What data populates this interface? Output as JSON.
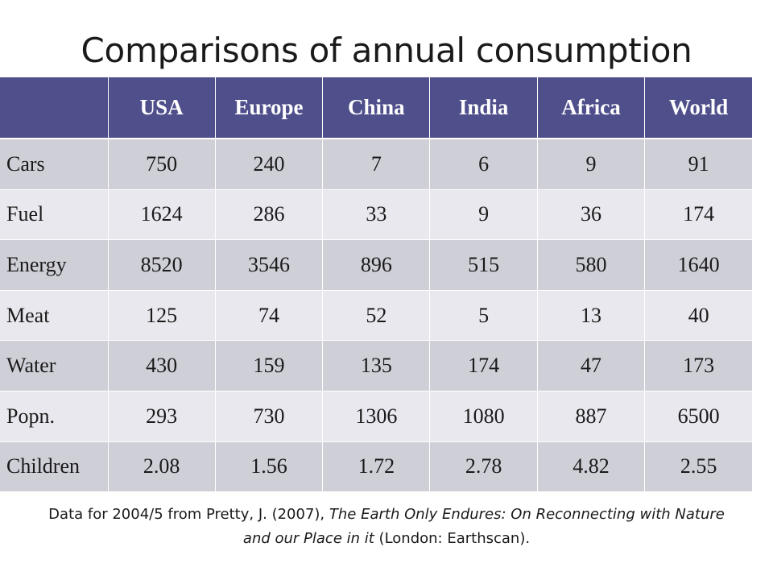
{
  "title": "Comparisons of annual consumption",
  "table": {
    "headers": [
      "",
      "USA",
      "Europe",
      "China",
      "India",
      "Africa",
      "World"
    ],
    "rows": [
      {
        "label": "Cars",
        "values": [
          "750",
          "240",
          "7",
          "6",
          "9",
          "91"
        ]
      },
      {
        "label": "Fuel",
        "values": [
          "1624",
          "286",
          "33",
          "9",
          "36",
          "174"
        ]
      },
      {
        "label": "Energy",
        "values": [
          "8520",
          "3546",
          "896",
          "515",
          "580",
          "1640"
        ]
      },
      {
        "label": "Meat",
        "values": [
          "125",
          "74",
          "52",
          "5",
          "13",
          "40"
        ]
      },
      {
        "label": "Water",
        "values": [
          "430",
          "159",
          "135",
          "174",
          "47",
          "173"
        ]
      },
      {
        "label": "Popn.",
        "values": [
          "293",
          "730",
          "1306",
          "1080",
          "887",
          "6500"
        ]
      },
      {
        "label": "Children",
        "values": [
          "2.08",
          "1.56",
          "1.72",
          "2.78",
          "4.82",
          "2.55"
        ]
      }
    ]
  },
  "caption": {
    "part1": "Data for 2004/5 from Pretty, J. (2007), ",
    "title_italic": "The Earth Only Endures: On Reconnecting with Nature and our Place in it",
    "part2": " (London: Earthscan)."
  },
  "colors": {
    "header_bg": "#4f4f8c",
    "row_odd": "#cfcfd8",
    "row_even": "#e8e8ee"
  }
}
